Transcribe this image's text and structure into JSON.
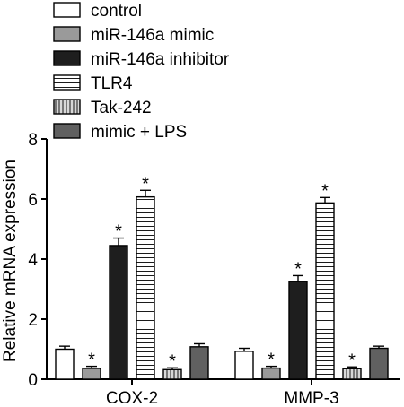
{
  "chart_data": {
    "type": "bar",
    "categories": [
      "COX-2",
      "MMP-3"
    ],
    "ylabel": "Relative mRNA expression",
    "xlabel": "",
    "ylim": [
      0,
      8
    ],
    "yticks": [
      0,
      2,
      4,
      6,
      8
    ],
    "grid": false,
    "legend_position": "top-left",
    "series": [
      {
        "name": "control",
        "values": [
          1.0,
          0.93
        ],
        "errors": [
          0.1,
          0.1
        ],
        "significant": [
          false,
          false
        ],
        "fill": "#ffffff",
        "pattern": "solid"
      },
      {
        "name": "miR-146a mimic",
        "values": [
          0.36,
          0.37
        ],
        "errors": [
          0.07,
          0.06
        ],
        "significant": [
          true,
          true
        ],
        "fill": "#9a9a9a",
        "pattern": "solid"
      },
      {
        "name": "miR-146a inhibitor",
        "values": [
          4.45,
          3.25
        ],
        "errors": [
          0.25,
          0.2
        ],
        "significant": [
          true,
          true
        ],
        "fill": "#1e1e1e",
        "pattern": "solid"
      },
      {
        "name": "TLR4",
        "values": [
          6.07,
          5.87
        ],
        "errors": [
          0.22,
          0.18
        ],
        "significant": [
          true,
          true
        ],
        "fill": "#ffffff",
        "pattern": "horizontal-lines"
      },
      {
        "name": "Tak-242",
        "values": [
          0.32,
          0.35
        ],
        "errors": [
          0.06,
          0.06
        ],
        "significant": [
          true,
          true
        ],
        "fill": "#d8d8d8",
        "pattern": "vertical-lines"
      },
      {
        "name": "mimic + LPS",
        "values": [
          1.08,
          1.03
        ],
        "errors": [
          0.1,
          0.07
        ],
        "significant": [
          false,
          false
        ],
        "fill": "#606060",
        "pattern": "solid"
      }
    ]
  },
  "significance_marker": "*"
}
